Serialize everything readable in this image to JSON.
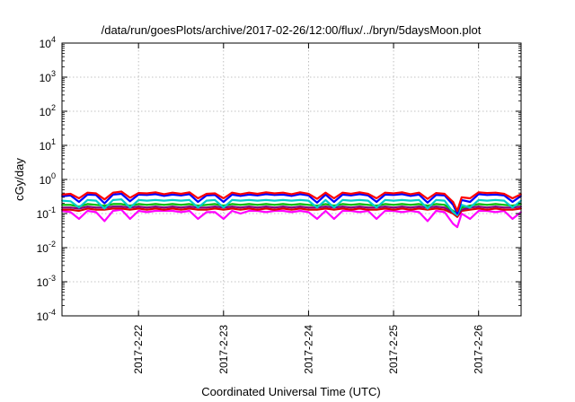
{
  "chart_data": {
    "type": "line",
    "title": "/data/run/goesPlots/archive/2017-02-26/12:00/flux/../bryn/5daysMoon.plot",
    "xlabel": "Coordinated Universal Time (UTC)",
    "ylabel": "cGy/day",
    "yscale": "log",
    "ylim": [
      0.0001,
      10000
    ],
    "xlim": [
      21.1,
      26.5
    ],
    "grid": true,
    "y_ticks": [
      {
        "value": 0.0001,
        "base": "10",
        "exp": "-4"
      },
      {
        "value": 0.001,
        "base": "10",
        "exp": "-3"
      },
      {
        "value": 0.01,
        "base": "10",
        "exp": "-2"
      },
      {
        "value": 0.1,
        "base": "10",
        "exp": "-1"
      },
      {
        "value": 1,
        "base": "10",
        "exp": "0"
      },
      {
        "value": 10,
        "base": "10",
        "exp": "1"
      },
      {
        "value": 100,
        "base": "10",
        "exp": "2"
      },
      {
        "value": 1000,
        "base": "10",
        "exp": "3"
      },
      {
        "value": 10000,
        "base": "10",
        "exp": "4"
      }
    ],
    "x_ticks": [
      {
        "value": 22,
        "label": "2017-2-22"
      },
      {
        "value": 23,
        "label": "2017-2-23"
      },
      {
        "value": 24,
        "label": "2017-2-24"
      },
      {
        "value": 25,
        "label": "2017-2-25"
      },
      {
        "value": 26,
        "label": "2017-2-26"
      }
    ],
    "x": [
      21.1,
      21.2,
      21.3,
      21.4,
      21.5,
      21.6,
      21.7,
      21.8,
      21.9,
      22.0,
      22.1,
      22.2,
      22.3,
      22.4,
      22.5,
      22.6,
      22.7,
      22.8,
      22.9,
      23.0,
      23.1,
      23.2,
      23.3,
      23.4,
      23.5,
      23.6,
      23.7,
      23.8,
      23.9,
      24.0,
      24.1,
      24.2,
      24.3,
      24.4,
      24.5,
      24.6,
      24.7,
      24.8,
      24.9,
      25.0,
      25.1,
      25.2,
      25.3,
      25.4,
      25.5,
      25.6,
      25.7,
      25.75,
      25.8,
      25.9,
      26.0,
      26.1,
      26.2,
      26.3,
      26.4,
      26.5
    ],
    "series": [
      {
        "color": "#ff00ff",
        "values": [
          0.12,
          0.11,
          0.07,
          0.12,
          0.11,
          0.06,
          0.12,
          0.13,
          0.07,
          0.12,
          0.11,
          0.12,
          0.12,
          0.12,
          0.11,
          0.12,
          0.07,
          0.11,
          0.11,
          0.07,
          0.12,
          0.1,
          0.12,
          0.12,
          0.11,
          0.12,
          0.12,
          0.11,
          0.12,
          0.11,
          0.07,
          0.12,
          0.07,
          0.12,
          0.12,
          0.11,
          0.12,
          0.07,
          0.12,
          0.12,
          0.11,
          0.12,
          0.11,
          0.06,
          0.12,
          0.11,
          0.05,
          0.04,
          0.1,
          0.07,
          0.12,
          0.12,
          0.11,
          0.12,
          0.07,
          0.11
        ]
      },
      {
        "color": "#dd0000",
        "values": [
          0.13,
          0.13,
          0.12,
          0.14,
          0.13,
          0.13,
          0.14,
          0.14,
          0.13,
          0.14,
          0.13,
          0.14,
          0.13,
          0.14,
          0.13,
          0.14,
          0.13,
          0.13,
          0.14,
          0.13,
          0.14,
          0.13,
          0.14,
          0.13,
          0.14,
          0.13,
          0.14,
          0.13,
          0.14,
          0.13,
          0.13,
          0.14,
          0.13,
          0.14,
          0.13,
          0.14,
          0.13,
          0.13,
          0.14,
          0.13,
          0.14,
          0.13,
          0.14,
          0.13,
          0.14,
          0.13,
          0.1,
          0.08,
          0.12,
          0.13,
          0.14,
          0.13,
          0.14,
          0.13,
          0.13,
          0.14
        ]
      },
      {
        "color": "#800080",
        "values": [
          0.15,
          0.15,
          0.14,
          0.16,
          0.15,
          0.15,
          0.16,
          0.16,
          0.15,
          0.16,
          0.15,
          0.16,
          0.15,
          0.16,
          0.15,
          0.16,
          0.15,
          0.15,
          0.16,
          0.15,
          0.16,
          0.15,
          0.16,
          0.15,
          0.16,
          0.15,
          0.16,
          0.15,
          0.16,
          0.15,
          0.15,
          0.16,
          0.15,
          0.16,
          0.15,
          0.16,
          0.15,
          0.15,
          0.16,
          0.15,
          0.16,
          0.15,
          0.16,
          0.15,
          0.16,
          0.15,
          0.11,
          0.09,
          0.13,
          0.15,
          0.16,
          0.15,
          0.16,
          0.15,
          0.15,
          0.16
        ]
      },
      {
        "color": "#00bb00",
        "values": [
          0.18,
          0.18,
          0.16,
          0.19,
          0.18,
          0.17,
          0.19,
          0.19,
          0.17,
          0.19,
          0.18,
          0.19,
          0.18,
          0.19,
          0.18,
          0.19,
          0.17,
          0.18,
          0.19,
          0.17,
          0.19,
          0.18,
          0.19,
          0.18,
          0.19,
          0.18,
          0.19,
          0.18,
          0.19,
          0.18,
          0.17,
          0.19,
          0.17,
          0.19,
          0.18,
          0.19,
          0.18,
          0.17,
          0.19,
          0.18,
          0.19,
          0.18,
          0.19,
          0.17,
          0.19,
          0.18,
          0.12,
          0.1,
          0.15,
          0.17,
          0.19,
          0.18,
          0.19,
          0.18,
          0.17,
          0.19
        ]
      },
      {
        "color": "#00cccc",
        "values": [
          0.24,
          0.23,
          0.15,
          0.25,
          0.24,
          0.14,
          0.25,
          0.26,
          0.15,
          0.25,
          0.24,
          0.25,
          0.24,
          0.25,
          0.24,
          0.25,
          0.15,
          0.24,
          0.25,
          0.15,
          0.25,
          0.24,
          0.25,
          0.24,
          0.25,
          0.24,
          0.25,
          0.24,
          0.25,
          0.24,
          0.15,
          0.25,
          0.15,
          0.25,
          0.24,
          0.25,
          0.24,
          0.15,
          0.25,
          0.24,
          0.25,
          0.24,
          0.25,
          0.14,
          0.25,
          0.24,
          0.11,
          0.09,
          0.18,
          0.15,
          0.25,
          0.24,
          0.25,
          0.24,
          0.15,
          0.24
        ]
      },
      {
        "color": "#0000ff",
        "values": [
          0.32,
          0.34,
          0.22,
          0.36,
          0.35,
          0.2,
          0.36,
          0.38,
          0.23,
          0.36,
          0.35,
          0.37,
          0.33,
          0.36,
          0.34,
          0.37,
          0.22,
          0.34,
          0.35,
          0.22,
          0.36,
          0.33,
          0.36,
          0.34,
          0.37,
          0.35,
          0.36,
          0.33,
          0.37,
          0.34,
          0.21,
          0.36,
          0.22,
          0.36,
          0.34,
          0.37,
          0.34,
          0.22,
          0.36,
          0.35,
          0.37,
          0.33,
          0.36,
          0.21,
          0.35,
          0.34,
          0.18,
          0.1,
          0.25,
          0.22,
          0.37,
          0.35,
          0.36,
          0.34,
          0.22,
          0.33
        ]
      },
      {
        "color": "#ff0000",
        "values": [
          0.36,
          0.38,
          0.28,
          0.41,
          0.39,
          0.26,
          0.41,
          0.44,
          0.29,
          0.4,
          0.39,
          0.42,
          0.37,
          0.41,
          0.38,
          0.42,
          0.28,
          0.38,
          0.39,
          0.28,
          0.41,
          0.37,
          0.41,
          0.38,
          0.42,
          0.39,
          0.41,
          0.37,
          0.42,
          0.38,
          0.27,
          0.41,
          0.28,
          0.41,
          0.38,
          0.42,
          0.38,
          0.28,
          0.41,
          0.39,
          0.42,
          0.37,
          0.41,
          0.27,
          0.4,
          0.38,
          0.22,
          0.12,
          0.3,
          0.28,
          0.42,
          0.4,
          0.41,
          0.38,
          0.28,
          0.37
        ]
      }
    ]
  }
}
